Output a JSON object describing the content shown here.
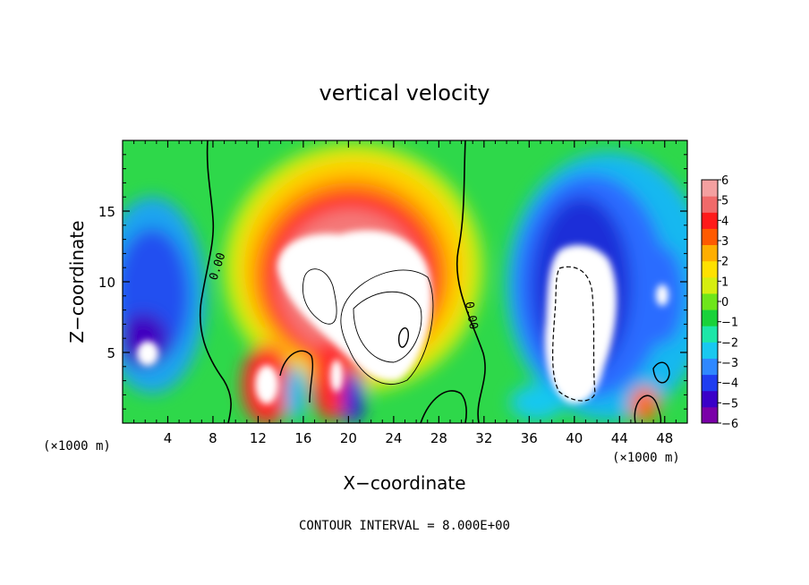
{
  "chart_data": {
    "type": "heatmap",
    "title": "vertical velocity",
    "xlabel": "X−coordinate",
    "ylabel": "Z−coordinate",
    "x_unit_left": "(×1000 m)",
    "x_unit_right": "(×1000 m)",
    "xlim": [
      0,
      50
    ],
    "ylim": [
      0,
      20
    ],
    "x_ticks": [
      4,
      8,
      12,
      16,
      20,
      24,
      28,
      32,
      36,
      40,
      44,
      48
    ],
    "y_ticks": [
      5,
      10,
      15
    ],
    "colorbar": {
      "ticks": [
        "6",
        "5",
        "4",
        "3",
        "2",
        "1",
        "0",
        "−1",
        "−2",
        "−3",
        "−4",
        "−5",
        "−6"
      ],
      "range": [
        -6,
        6
      ],
      "colors": [
        "#7a00a8",
        "#3a00c8",
        "#1f3df0",
        "#2f88ff",
        "#19c8f0",
        "#1de6a8",
        "#19d23a",
        "#6ee61a",
        "#d6ee10",
        "#ffe100",
        "#ffae00",
        "#ff5a00",
        "#ff1a1a",
        "#f06a6a",
        "#f4a0a0"
      ]
    },
    "contour_labels": [
      "0.00",
      "0.00"
    ],
    "contour_interval_text": "CONTOUR INTERVAL = 8.000E+00",
    "features": [
      {
        "kind": "updraft-core",
        "x": 21,
        "z": 10.5,
        "value": 6
      },
      {
        "kind": "downdraft-core",
        "x": 42,
        "z": 7.5,
        "value": -6
      },
      {
        "kind": "updraft",
        "x": 13,
        "z": 3,
        "value": 6
      },
      {
        "kind": "updraft",
        "x": 18.5,
        "z": 3.2,
        "value": 6
      },
      {
        "kind": "downdraft",
        "x": 2,
        "z": 5,
        "value": -6
      },
      {
        "kind": "downdraft",
        "x": 48,
        "z": 9,
        "value": -6
      }
    ]
  }
}
